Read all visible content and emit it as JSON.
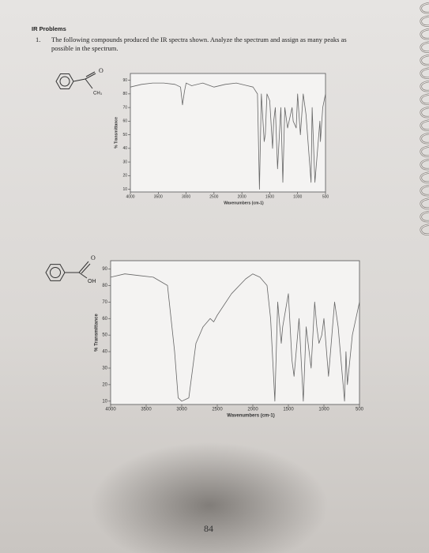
{
  "header": {
    "title": "IR Problems"
  },
  "problem": {
    "number": "1.",
    "text": "The following compounds produced the IR spectra shown. Analyze the spectrum and assign as many peaks as possible in the spectrum."
  },
  "molecules": [
    {
      "labels": [
        "O",
        "CH₃"
      ]
    },
    {
      "labels": [
        "O",
        "OH"
      ]
    }
  ],
  "chart_data": [
    {
      "type": "line",
      "x_label": "Wavenumbers (cm-1)",
      "y_label": "% Transmittance",
      "xlim": [
        4000,
        500
      ],
      "ylim": [
        8,
        95
      ],
      "xticks": [
        4000,
        3500,
        3000,
        2500,
        2000,
        1500,
        1000,
        500
      ],
      "yticks": [
        10,
        20,
        30,
        40,
        50,
        60,
        70,
        80,
        90
      ],
      "grid": false,
      "color": "#666666",
      "x": [
        4000,
        3800,
        3600,
        3400,
        3200,
        3100,
        3065,
        3030,
        3000,
        2950,
        2900,
        2700,
        2500,
        2300,
        2100,
        1900,
        1800,
        1720,
        1685,
        1650,
        1600,
        1580,
        1550,
        1500,
        1450,
        1430,
        1400,
        1360,
        1300,
        1265,
        1230,
        1180,
        1100,
        1080,
        1025,
        1000,
        950,
        900,
        850,
        760,
        740,
        690,
        600,
        590,
        550,
        500
      ],
      "values": [
        85,
        87,
        88,
        88,
        87,
        85,
        72,
        82,
        88,
        87,
        86,
        88,
        85,
        87,
        88,
        86,
        85,
        80,
        10,
        80,
        45,
        50,
        80,
        75,
        40,
        60,
        70,
        25,
        70,
        15,
        70,
        55,
        70,
        60,
        55,
        80,
        50,
        80,
        65,
        15,
        70,
        15,
        60,
        45,
        70,
        80
      ]
    },
    {
      "type": "line",
      "x_label": "Wavenumbers (cm-1)",
      "y_label": "% Transmittance",
      "xlim": [
        4000,
        500
      ],
      "ylim": [
        8,
        95
      ],
      "xticks": [
        4000,
        3500,
        3000,
        2500,
        2000,
        1500,
        1000,
        500
      ],
      "yticks": [
        10,
        20,
        30,
        40,
        50,
        60,
        70,
        80,
        90
      ],
      "grid": false,
      "color": "#666666",
      "x": [
        4000,
        3800,
        3600,
        3400,
        3200,
        3100,
        3050,
        3000,
        2950,
        2900,
        2800,
        2700,
        2600,
        2550,
        2500,
        2300,
        2100,
        2000,
        1900,
        1800,
        1750,
        1690,
        1650,
        1600,
        1580,
        1500,
        1450,
        1420,
        1350,
        1320,
        1290,
        1250,
        1180,
        1130,
        1100,
        1070,
        1030,
        1000,
        935,
        850,
        800,
        710,
        690,
        670,
        600,
        550,
        500
      ],
      "values": [
        85,
        87,
        86,
        85,
        80,
        40,
        12,
        10,
        11,
        12,
        45,
        55,
        60,
        58,
        62,
        75,
        84,
        87,
        85,
        80,
        60,
        10,
        70,
        45,
        55,
        75,
        35,
        25,
        60,
        35,
        10,
        55,
        30,
        70,
        55,
        45,
        50,
        60,
        25,
        70,
        55,
        10,
        40,
        20,
        50,
        60,
        70
      ]
    }
  ],
  "page_number": "84"
}
